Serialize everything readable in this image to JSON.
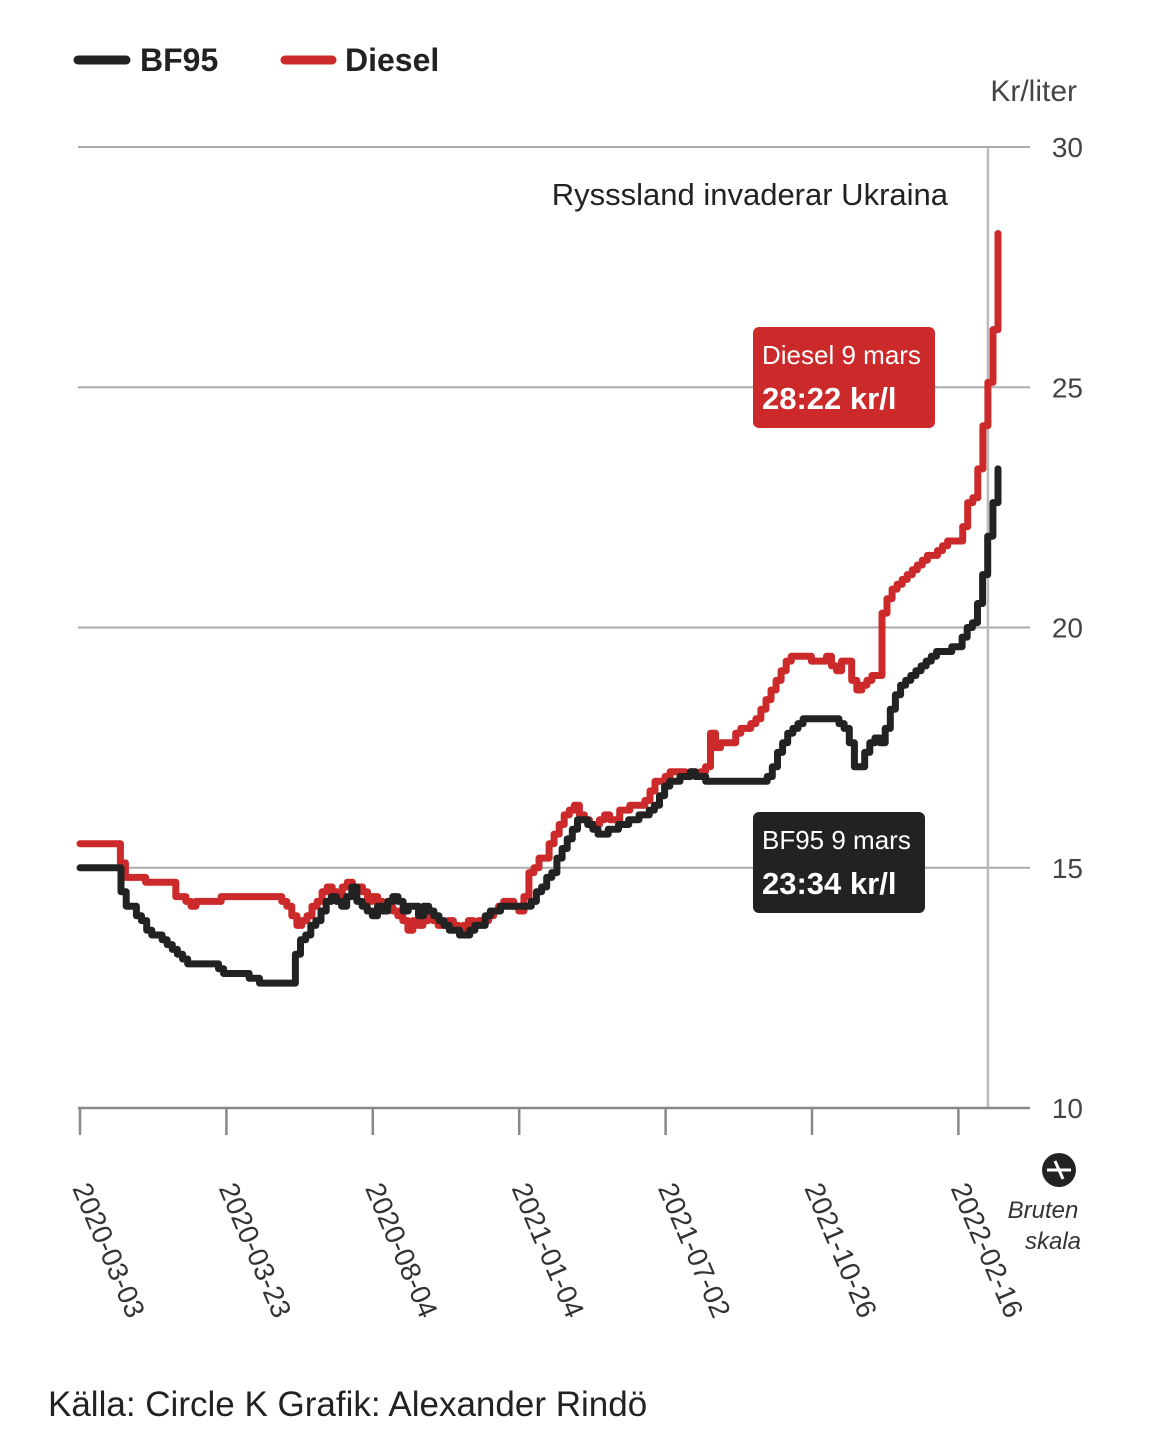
{
  "chart_data": {
    "type": "line",
    "unit_label": "Kr/liter",
    "ylim": [
      10,
      30
    ],
    "yticks": [
      10,
      15,
      20,
      25,
      30
    ],
    "ytick_labels": [
      "10",
      "15",
      "20",
      "25",
      "30"
    ],
    "x_tick_labels": [
      "2020-03-03",
      "2020-03-23",
      "2020-08-04",
      "2021-01-04",
      "2021-07-02",
      "2021-10-26",
      "2022-02-16"
    ],
    "grid": true,
    "legend_position": "top-left",
    "colors": {
      "bf95": "#222222",
      "diesel": "#cc2a2a",
      "grid": "#aaaaaa"
    },
    "series": [
      {
        "key": "diesel",
        "name": "Diesel",
        "color": "#cc2a2a",
        "values": [
          15.5,
          15.5,
          15.5,
          15.5,
          15.5,
          15.5,
          15.5,
          15.5,
          15.1,
          14.8,
          14.8,
          14.8,
          14.8,
          14.7,
          14.7,
          14.7,
          14.7,
          14.7,
          14.7,
          14.4,
          14.4,
          14.3,
          14.2,
          14.3,
          14.3,
          14.3,
          14.3,
          14.3,
          14.4,
          14.4,
          14.4,
          14.4,
          14.4,
          14.4,
          14.4,
          14.4,
          14.4,
          14.4,
          14.4,
          14.4,
          14.3,
          14.2,
          14.0,
          13.8,
          13.9,
          14.0,
          14.2,
          14.3,
          14.5,
          14.6,
          14.5,
          14.4,
          14.6,
          14.7,
          14.5,
          14.6,
          14.5,
          14.3,
          14.4,
          14.3,
          14.2,
          14.2,
          14.1,
          14.0,
          13.9,
          13.7,
          13.9,
          13.8,
          13.9,
          14.0,
          13.9,
          13.8,
          13.8,
          13.9,
          13.8,
          13.7,
          13.8,
          13.9,
          13.8,
          13.9,
          13.9,
          14.0,
          14.1,
          14.2,
          14.3,
          14.3,
          14.2,
          14.1,
          14.4,
          14.9,
          15.0,
          15.2,
          15.2,
          15.5,
          15.7,
          15.9,
          16.1,
          16.2,
          16.3,
          16.1,
          16.0,
          15.9,
          15.9,
          16.0,
          16.1,
          16.0,
          16.0,
          16.2,
          16.2,
          16.3,
          16.3,
          16.3,
          16.4,
          16.6,
          16.8,
          16.8,
          16.9,
          17.0,
          17.0,
          17.0,
          16.9,
          17.0,
          16.9,
          17.0,
          17.1,
          17.8,
          17.5,
          17.6,
          17.6,
          17.6,
          17.8,
          17.9,
          17.9,
          18.0,
          18.1,
          18.3,
          18.5,
          18.7,
          18.9,
          19.1,
          19.3,
          19.4,
          19.4,
          19.4,
          19.4,
          19.3,
          19.3,
          19.3,
          19.4,
          19.2,
          19.1,
          19.3,
          19.3,
          18.9,
          18.7,
          18.8,
          18.9,
          19.0,
          19.0,
          20.3,
          20.6,
          20.8,
          20.9,
          21.0,
          21.1,
          21.2,
          21.3,
          21.4,
          21.5,
          21.5,
          21.6,
          21.7,
          21.8,
          21.8,
          21.8,
          22.1,
          22.6,
          22.7,
          23.3,
          24.2,
          25.1,
          26.2,
          28.2
        ]
      },
      {
        "key": "bf95",
        "name": "BF95",
        "color": "#222222",
        "values": [
          15.0,
          15.0,
          15.0,
          15.0,
          15.0,
          15.0,
          15.0,
          15.0,
          14.5,
          14.2,
          14.2,
          14.0,
          13.9,
          13.7,
          13.6,
          13.6,
          13.5,
          13.4,
          13.3,
          13.2,
          13.1,
          13.0,
          13.0,
          13.0,
          13.0,
          13.0,
          13.0,
          12.9,
          12.8,
          12.8,
          12.8,
          12.8,
          12.8,
          12.7,
          12.7,
          12.6,
          12.6,
          12.6,
          12.6,
          12.6,
          12.6,
          12.6,
          13.2,
          13.5,
          13.6,
          13.8,
          13.9,
          14.1,
          14.3,
          14.4,
          14.3,
          14.2,
          14.4,
          14.6,
          14.3,
          14.2,
          14.1,
          14.0,
          14.2,
          14.1,
          14.3,
          14.4,
          14.3,
          14.1,
          14.2,
          14.2,
          14.0,
          14.2,
          14.1,
          14.0,
          13.9,
          13.8,
          13.7,
          13.7,
          13.6,
          13.6,
          13.7,
          13.8,
          13.8,
          14.0,
          14.1,
          14.1,
          14.2,
          14.2,
          14.2,
          14.2,
          14.2,
          14.2,
          14.3,
          14.5,
          14.6,
          14.8,
          14.9,
          15.2,
          15.4,
          15.6,
          15.8,
          16.0,
          16.0,
          15.9,
          15.8,
          15.7,
          15.7,
          15.8,
          15.8,
          15.9,
          15.9,
          16.0,
          16.0,
          16.1,
          16.1,
          16.2,
          16.3,
          16.5,
          16.7,
          16.8,
          16.8,
          16.9,
          16.9,
          17.0,
          16.9,
          16.9,
          16.8,
          16.8,
          16.8,
          16.8,
          16.8,
          16.8,
          16.8,
          16.8,
          16.8,
          16.8,
          16.8,
          16.8,
          16.9,
          17.1,
          17.4,
          17.6,
          17.8,
          17.9,
          18.0,
          18.1,
          18.1,
          18.1,
          18.1,
          18.1,
          18.1,
          18.1,
          18.0,
          17.9,
          17.6,
          17.1,
          17.1,
          17.4,
          17.6,
          17.7,
          17.6,
          17.9,
          18.3,
          18.6,
          18.8,
          18.9,
          19.0,
          19.1,
          19.2,
          19.3,
          19.4,
          19.5,
          19.5,
          19.5,
          19.6,
          19.6,
          19.8,
          20.0,
          20.1,
          20.5,
          21.1,
          21.9,
          22.6,
          23.3
        ]
      }
    ],
    "annotations": [
      {
        "key": "invasion",
        "text": "Rysssland invaderar Ukraina",
        "x_index": 180
      }
    ],
    "callouts": {
      "diesel": {
        "title": "Diesel 9 mars",
        "value": "28:22 kr/l",
        "color": "#cc2a2a"
      },
      "bf95": {
        "title": "BF95 9 mars",
        "value": "23:34 kr/l",
        "color": "#222222"
      }
    },
    "broken_scale": {
      "line1": "Bruten",
      "line2": "skala"
    }
  },
  "source": "Källa: Circle K Grafik: Alexander Rindö"
}
